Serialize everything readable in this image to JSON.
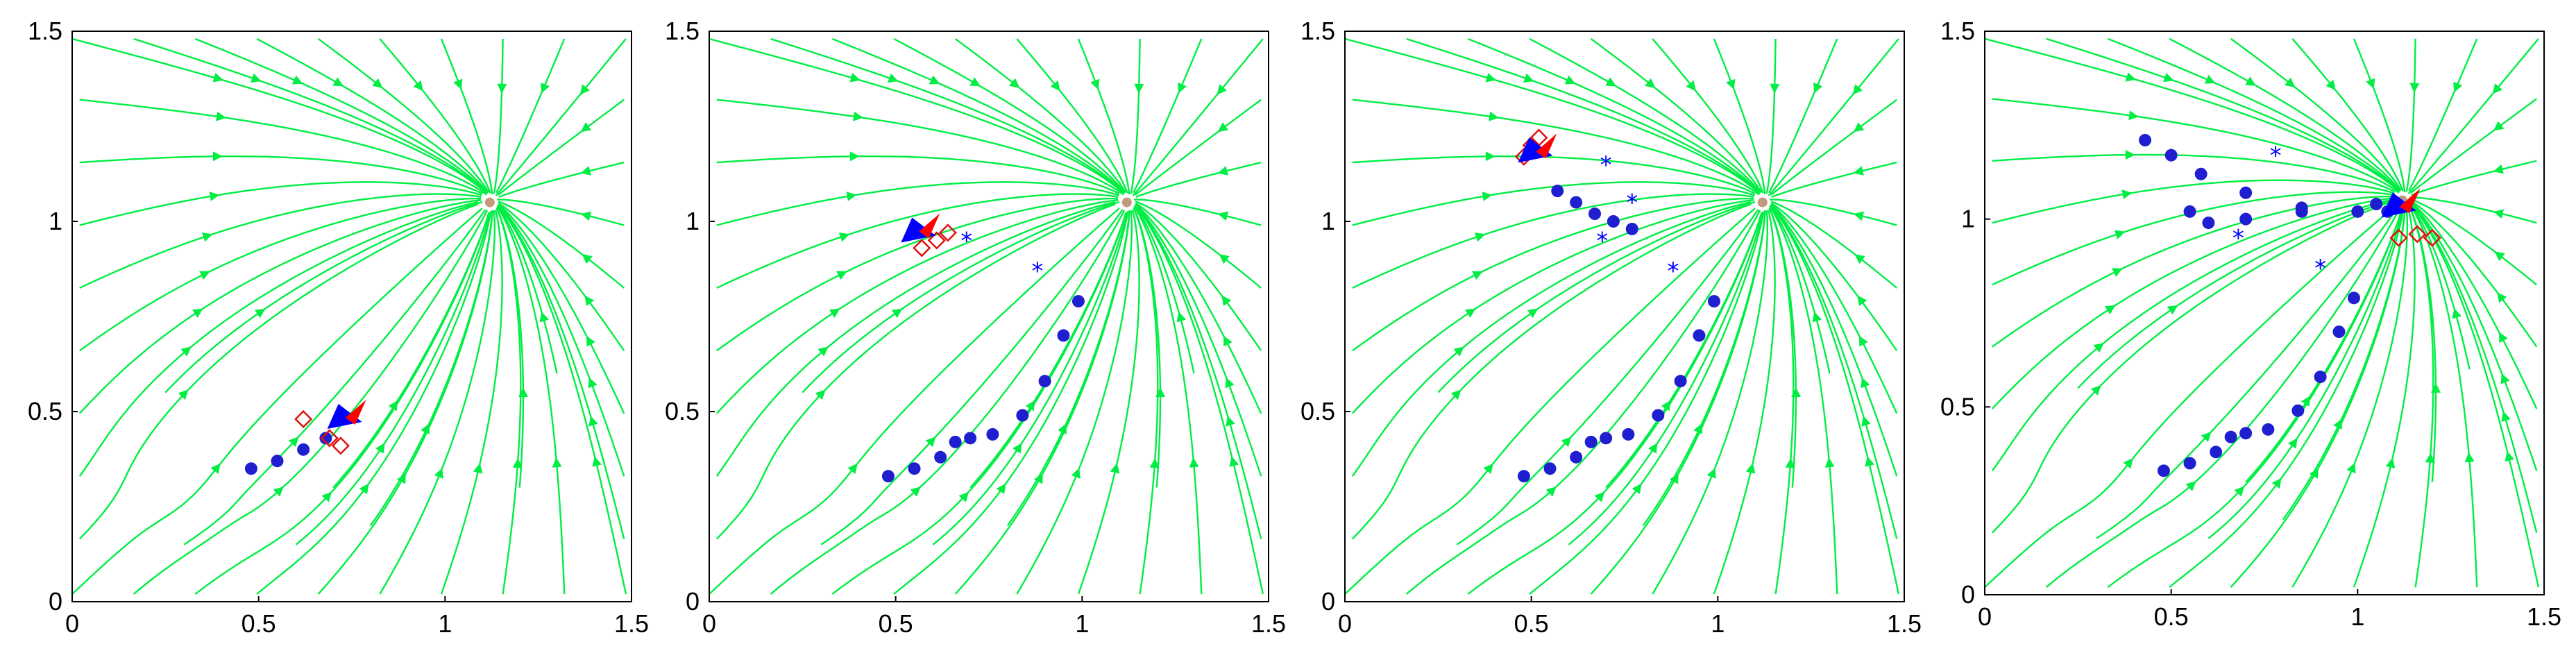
{
  "colors": {
    "streamline": "#00ee44",
    "trajectory": "#1f1fd0",
    "demo_marker": "#e01010",
    "pose_blue": "#0000ff",
    "pose_red": "#ff0000",
    "attractor": "#c09a7a",
    "arm": "#111111"
  },
  "chart_data": [
    {
      "type": "scatter",
      "title": "",
      "xlabel": "",
      "ylabel": "",
      "xlim": [
        0,
        1.5
      ],
      "ylim": [
        0,
        1.5
      ],
      "xticks": [
        "0",
        "0.5",
        "1",
        "1.5"
      ],
      "yticks": [
        "0",
        "0.5",
        "1",
        "1.5"
      ],
      "grid": false,
      "attractor": {
        "x": 1.12,
        "y": 1.05
      },
      "series": [
        {
          "kind": "trajectory",
          "points": [
            [
              0.48,
              0.35
            ],
            [
              0.55,
              0.37
            ],
            [
              0.62,
              0.4
            ],
            [
              0.68,
              0.43
            ]
          ]
        },
        {
          "kind": "diamonds",
          "points": [
            [
              0.62,
              0.48
            ],
            [
              0.69,
              0.43
            ],
            [
              0.72,
              0.41
            ]
          ]
        },
        {
          "kind": "tool-pose",
          "points": [
            [
              0.74,
              0.48
            ]
          ]
        }
      ]
    },
    {
      "type": "scatter",
      "title": "",
      "xlabel": "",
      "ylabel": "",
      "xlim": [
        0,
        1.5
      ],
      "ylim": [
        0,
        1.5
      ],
      "xticks": [
        "0",
        "0.5",
        "1",
        "1.5"
      ],
      "yticks": [
        "0",
        "0.5",
        "1",
        "1.5"
      ],
      "grid": false,
      "attractor": {
        "x": 1.12,
        "y": 1.05
      },
      "series": [
        {
          "kind": "trajectory",
          "points": [
            [
              0.48,
              0.33
            ],
            [
              0.55,
              0.35
            ],
            [
              0.62,
              0.38
            ],
            [
              0.66,
              0.42
            ],
            [
              0.7,
              0.43
            ],
            [
              0.76,
              0.44
            ],
            [
              0.84,
              0.49
            ],
            [
              0.9,
              0.58
            ],
            [
              0.95,
              0.7
            ],
            [
              0.99,
              0.79
            ]
          ]
        },
        {
          "kind": "stars",
          "points": [
            [
              0.88,
              0.87
            ],
            [
              0.69,
              0.95
            ]
          ]
        },
        {
          "kind": "diamonds",
          "points": [
            [
              0.57,
              0.93
            ],
            [
              0.61,
              0.95
            ],
            [
              0.64,
              0.97
            ]
          ]
        },
        {
          "kind": "tool-pose",
          "points": [
            [
              0.57,
              0.97
            ]
          ]
        }
      ]
    },
    {
      "type": "scatter",
      "title": "",
      "xlabel": "",
      "ylabel": "",
      "xlim": [
        0,
        1.5
      ],
      "ylim": [
        0,
        1.5
      ],
      "xticks": [
        "0",
        "0.5",
        "1",
        "1.5"
      ],
      "yticks": [
        "0",
        "0.5",
        "1",
        "1.5"
      ],
      "grid": false,
      "attractor": {
        "x": 1.12,
        "y": 1.05
      },
      "series": [
        {
          "kind": "trajectory",
          "points": [
            [
              0.48,
              0.33
            ],
            [
              0.55,
              0.35
            ],
            [
              0.62,
              0.38
            ],
            [
              0.66,
              0.42
            ],
            [
              0.7,
              0.43
            ],
            [
              0.76,
              0.44
            ],
            [
              0.84,
              0.49
            ],
            [
              0.9,
              0.58
            ],
            [
              0.95,
              0.7
            ],
            [
              0.99,
              0.79
            ],
            [
              0.57,
              1.08
            ],
            [
              0.62,
              1.05
            ],
            [
              0.67,
              1.02
            ],
            [
              0.72,
              1.0
            ],
            [
              0.77,
              0.98
            ]
          ]
        },
        {
          "kind": "stars",
          "points": [
            [
              0.88,
              0.87
            ],
            [
              0.69,
              0.95
            ],
            [
              0.77,
              1.05
            ],
            [
              0.7,
              1.15
            ]
          ]
        },
        {
          "kind": "diamonds",
          "points": [
            [
              0.5,
              1.2
            ],
            [
              0.48,
              1.17
            ],
            [
              0.52,
              1.22
            ]
          ]
        },
        {
          "kind": "tool-pose",
          "points": [
            [
              0.52,
              1.18
            ]
          ]
        }
      ]
    },
    {
      "type": "scatter",
      "title": "",
      "xlabel": "",
      "ylabel": "",
      "xlim": [
        0,
        1.5
      ],
      "ylim": [
        0,
        1.5
      ],
      "xticks": [
        "0",
        "0.5",
        "1",
        "1.5"
      ],
      "yticks": [
        "0",
        "0.5",
        "1",
        "1.5"
      ],
      "grid": false,
      "attractor": {
        "x": 1.12,
        "y": 1.05
      },
      "series": [
        {
          "kind": "trajectory",
          "points": [
            [
              0.48,
              0.33
            ],
            [
              0.55,
              0.35
            ],
            [
              0.62,
              0.38
            ],
            [
              0.66,
              0.42
            ],
            [
              0.7,
              0.43
            ],
            [
              0.76,
              0.44
            ],
            [
              0.84,
              0.49
            ],
            [
              0.9,
              0.58
            ],
            [
              0.95,
              0.7
            ],
            [
              0.99,
              0.79
            ],
            [
              0.43,
              1.21
            ],
            [
              0.5,
              1.17
            ],
            [
              0.58,
              1.12
            ],
            [
              0.7,
              1.07
            ],
            [
              0.85,
              1.03
            ],
            [
              1.0,
              1.02
            ],
            [
              1.08,
              1.02
            ],
            [
              0.55,
              1.02
            ],
            [
              0.6,
              0.99
            ],
            [
              0.7,
              1.0
            ],
            [
              0.85,
              1.02
            ],
            [
              1.05,
              1.04
            ]
          ]
        },
        {
          "kind": "stars",
          "points": [
            [
              0.78,
              1.17
            ],
            [
              0.9,
              0.87
            ],
            [
              0.68,
              0.95
            ]
          ]
        },
        {
          "kind": "diamonds",
          "points": [
            [
              1.11,
              0.95
            ],
            [
              1.16,
              0.96
            ],
            [
              1.2,
              0.95
            ]
          ]
        },
        {
          "kind": "tool-pose",
          "points": [
            [
              1.12,
              1.03
            ]
          ]
        }
      ]
    }
  ]
}
